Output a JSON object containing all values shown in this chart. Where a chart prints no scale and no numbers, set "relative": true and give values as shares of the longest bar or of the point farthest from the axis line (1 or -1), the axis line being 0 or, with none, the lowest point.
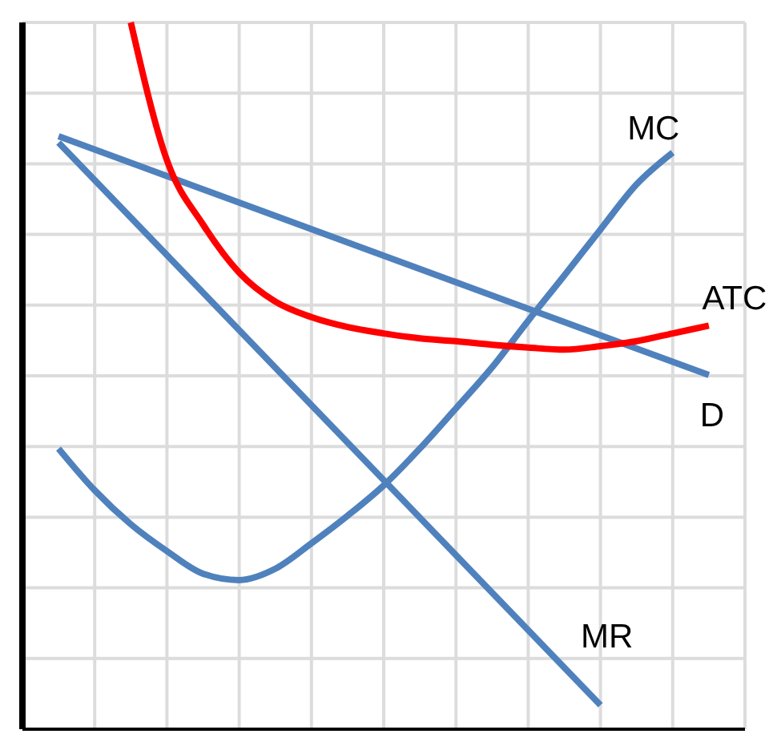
{
  "chart_data": {
    "type": "line",
    "relative": true,
    "grid": true,
    "marker": "none",
    "line_style": "solid",
    "categories": [
      null,
      null,
      null,
      null,
      null,
      null,
      null,
      null,
      null,
      null,
      null,
      null,
      null,
      null,
      null,
      null,
      null,
      null,
      null,
      null,
      null
    ],
    "series": [
      {
        "name": "D",
        "color": "#4f81bd",
        "values": [
          null,
          0.839,
          null,
          null,
          null,
          null,
          null,
          null,
          null,
          null,
          null,
          null,
          null,
          null,
          null,
          null,
          null,
          null,
          null,
          0.501,
          null
        ]
      },
      {
        "name": "MR",
        "color": "#4f81bd",
        "values": [
          null,
          0.83,
          null,
          null,
          null,
          null,
          null,
          null,
          null,
          null,
          null,
          null,
          null,
          null,
          null,
          null,
          0.034,
          null,
          null,
          null,
          null
        ]
      },
      {
        "name": "MC",
        "color": "#4f81bd",
        "values": [
          null,
          0.397,
          0.338,
          0.29,
          0.252,
          0.22,
          0.211,
          0.227,
          0.263,
          0.302,
          0.345,
          0.397,
          0.454,
          0.512,
          0.578,
          0.642,
          0.707,
          0.771,
          0.816,
          null,
          null
        ]
      },
      {
        "name": "ATC",
        "color": "#ff0000",
        "values": [
          null,
          null,
          null,
          1,
          0.805,
          0.714,
          0.646,
          0.605,
          0.583,
          0.569,
          0.56,
          0.553,
          0.549,
          0.544,
          0.54,
          0.537,
          0.542,
          0.549,
          0.56,
          0.571,
          null
        ]
      }
    ]
  }
}
